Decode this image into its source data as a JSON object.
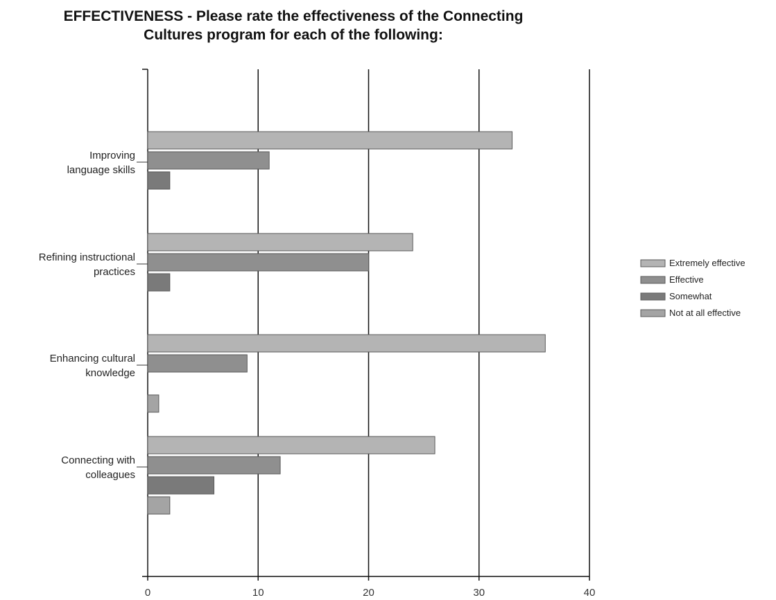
{
  "chart_data": {
    "type": "bar",
    "orientation": "horizontal",
    "title": "EFFECTIVENESS - Please rate the effectiveness of the Connecting Cultures program for each of the following:",
    "title_lines": [
      "EFFECTIVENESS - Please rate the effectiveness of the Connecting",
      "Cultures program for each of the following:"
    ],
    "categories": [
      "Improving language skills",
      "Refining instructional practices",
      "Enhancing cultural knowledge",
      "Connecting with colleagues"
    ],
    "category_label_lines": [
      [
        "Improving",
        "language skills"
      ],
      [
        "Refining instructional",
        "practices"
      ],
      [
        "Enhancing cultural",
        "knowledge"
      ],
      [
        "Connecting with",
        "colleagues"
      ]
    ],
    "series": [
      {
        "name": "Extremely effective",
        "values": [
          33,
          24,
          36,
          26
        ],
        "color": "#b4b4b4"
      },
      {
        "name": "Effective",
        "values": [
          11,
          20,
          9,
          12
        ],
        "color": "#8f8f8f"
      },
      {
        "name": "Somewhat",
        "values": [
          2,
          2,
          0,
          6
        ],
        "color": "#7a7a7a"
      },
      {
        "name": "Not at all effective",
        "values": [
          0,
          0,
          1,
          2
        ],
        "color": "#a4a4a4"
      }
    ],
    "xlim": [
      0,
      40
    ],
    "x_ticks": [
      0,
      10,
      20,
      30,
      40
    ],
    "grid": true,
    "legend": "right"
  }
}
